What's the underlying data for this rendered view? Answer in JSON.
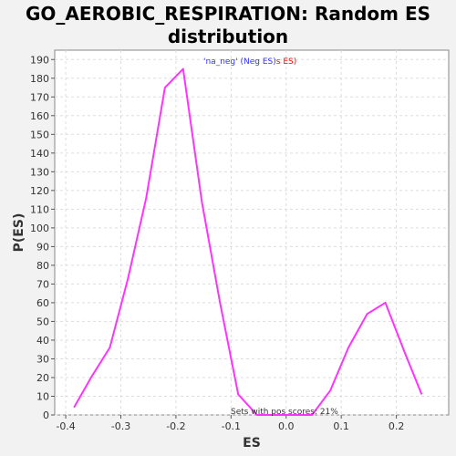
{
  "chart_data": {
    "type": "line",
    "title_lines": [
      "GO_AEROBIC_RESPIRATION: Random ES",
      "distribution"
    ],
    "xlabel": "ES",
    "ylabel": "P(ES)",
    "xlim": [
      -0.42,
      0.295
    ],
    "ylim": [
      0,
      195
    ],
    "x_ticks": [
      -0.4,
      -0.3,
      -0.2,
      -0.1,
      0.0,
      0.1,
      0.2
    ],
    "x_tick_labels": [
      "-0.4",
      "-0.3",
      "-0.2",
      "-0.1",
      "0.0",
      "0.1",
      "0.2"
    ],
    "y_ticks": [
      0,
      10,
      20,
      30,
      40,
      50,
      60,
      70,
      80,
      90,
      100,
      110,
      120,
      130,
      140,
      150,
      160,
      170,
      180,
      190
    ],
    "y_tick_labels": [
      "0",
      "10",
      "20",
      "30",
      "40",
      "50",
      "60",
      "70",
      "80",
      "90",
      "100",
      "110",
      "120",
      "130",
      "140",
      "150",
      "160",
      "170",
      "180",
      "190"
    ],
    "grid": true,
    "series": [
      {
        "color": "#ff33ff",
        "points": [
          [
            -0.385,
            4
          ],
          [
            -0.352,
            21
          ],
          [
            -0.32,
            36
          ],
          [
            -0.287,
            73
          ],
          [
            -0.254,
            116
          ],
          [
            -0.22,
            175
          ],
          [
            -0.187,
            185
          ],
          [
            -0.153,
            114
          ],
          [
            -0.12,
            60
          ],
          [
            -0.087,
            11
          ],
          [
            -0.053,
            0
          ],
          [
            -0.02,
            0
          ],
          [
            0.013,
            0
          ],
          [
            0.047,
            0
          ],
          [
            0.08,
            13
          ],
          [
            0.113,
            36
          ],
          [
            0.147,
            54
          ],
          [
            0.18,
            60
          ],
          [
            0.213,
            35
          ],
          [
            0.246,
            11
          ]
        ]
      }
    ],
    "annotations": {
      "legend_neg_name": "'na_neg'",
      "legend_neg_suffix": " (Neg ES)",
      "legend_pos_suffix": "s ES)",
      "legend_neg_color": "#3333ff",
      "legend_pos_color": "#ff0000",
      "pos_scores": "Sets with pos scores: 21%"
    }
  }
}
